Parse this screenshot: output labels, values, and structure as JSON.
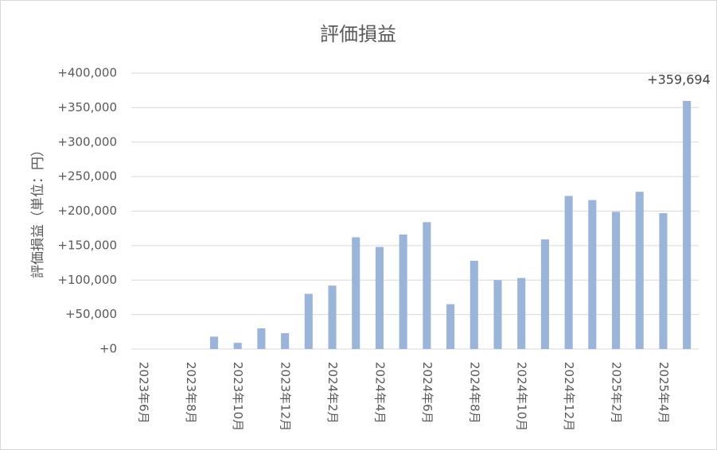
{
  "chart_data": {
    "type": "bar",
    "title": "評価損益",
    "y_label": "評価損益（単位：円）",
    "categories": [
      "2023年6月",
      null,
      "2023年8月",
      null,
      "2023年10月",
      null,
      "2023年12月",
      null,
      "2024年2月",
      null,
      "2024年4月",
      null,
      "2024年6月",
      null,
      "2024年8月",
      null,
      "2024年10月",
      null,
      "2024年12月",
      null,
      "2025年2月",
      null,
      "2025年4月",
      null
    ],
    "values": [
      0,
      0,
      0,
      18000,
      9000,
      30000,
      23000,
      80000,
      92000,
      162000,
      148000,
      166000,
      184000,
      65000,
      128000,
      100000,
      103000,
      159000,
      222000,
      216000,
      199000,
      228000,
      197000,
      359694
    ],
    "value_labels": [
      null,
      null,
      null,
      null,
      null,
      null,
      null,
      null,
      null,
      null,
      null,
      null,
      null,
      null,
      null,
      null,
      null,
      null,
      null,
      null,
      null,
      null,
      null,
      "+359,694"
    ],
    "color": "#9bb5da",
    "ylim": [
      0,
      400000
    ],
    "yticks": [
      {
        "value": 0,
        "label": "+0"
      },
      {
        "value": 50000,
        "label": "+50,000"
      },
      {
        "value": 100000,
        "label": "+100,000"
      },
      {
        "value": 150000,
        "label": "+150,000"
      },
      {
        "value": 200000,
        "label": "+200,000"
      },
      {
        "value": 250000,
        "label": "+250,000"
      },
      {
        "value": 300000,
        "label": "+300,000"
      },
      {
        "value": 350000,
        "label": "+350,000"
      },
      {
        "value": 400000,
        "label": "+400,000"
      }
    ],
    "grid": true
  }
}
